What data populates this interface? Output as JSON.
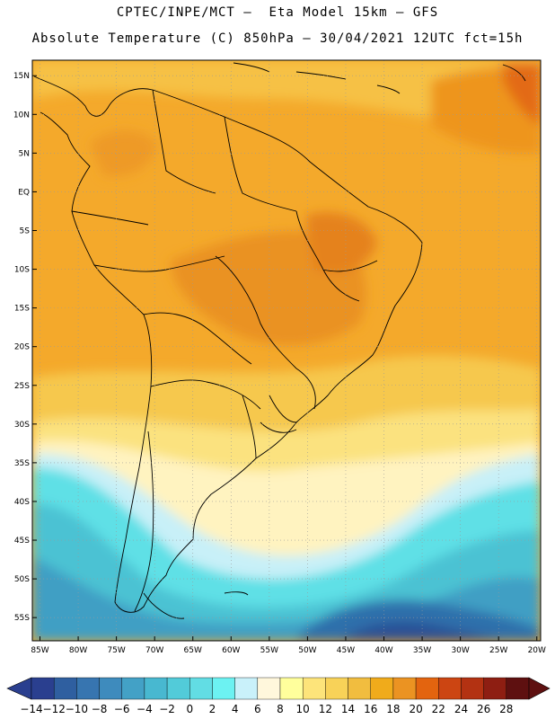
{
  "header": {
    "line1": "CPTEC/INPE/MCT –  Eta Model 15km – GFS",
    "line2": "Absolute Temperature (C) 850hPa – 30/04/2021 12UTC fct=15h"
  },
  "map": {
    "region": "South America",
    "lon_range": [
      -86,
      -19.5
    ],
    "lat_range": [
      -58,
      17
    ],
    "lat_ticks": [
      {
        "lat": 15,
        "label": "15N"
      },
      {
        "lat": 10,
        "label": "10N"
      },
      {
        "lat": 5,
        "label": "5N"
      },
      {
        "lat": 0,
        "label": "EQ"
      },
      {
        "lat": -5,
        "label": "5S"
      },
      {
        "lat": -10,
        "label": "10S"
      },
      {
        "lat": -15,
        "label": "15S"
      },
      {
        "lat": -20,
        "label": "20S"
      },
      {
        "lat": -25,
        "label": "25S"
      },
      {
        "lat": -30,
        "label": "30S"
      },
      {
        "lat": -35,
        "label": "35S"
      },
      {
        "lat": -40,
        "label": "40S"
      },
      {
        "lat": -45,
        "label": "45S"
      },
      {
        "lat": -50,
        "label": "50S"
      },
      {
        "lat": -55,
        "label": "55S"
      }
    ],
    "lon_ticks": [
      {
        "lon": -85,
        "label": "85W"
      },
      {
        "lon": -80,
        "label": "80W"
      },
      {
        "lon": -75,
        "label": "75W"
      },
      {
        "lon": -70,
        "label": "70W"
      },
      {
        "lon": -65,
        "label": "65W"
      },
      {
        "lon": -60,
        "label": "60W"
      },
      {
        "lon": -55,
        "label": "55W"
      },
      {
        "lon": -50,
        "label": "50W"
      },
      {
        "lon": -45,
        "label": "45W"
      },
      {
        "lon": -40,
        "label": "40W"
      },
      {
        "lon": -35,
        "label": "35W"
      },
      {
        "lon": -30,
        "label": "30W"
      },
      {
        "lon": -25,
        "label": "25W"
      },
      {
        "lon": -20,
        "label": "20W"
      }
    ]
  },
  "colorbar": {
    "labels": [
      "−14",
      "−12",
      "−10",
      "−8",
      "−6",
      "−4",
      "−2",
      "0",
      "2",
      "4",
      "6",
      "8",
      "10",
      "12",
      "14",
      "16",
      "18",
      "20",
      "22",
      "24",
      "26",
      "28"
    ],
    "colors": [
      "#2a3f8f",
      "#2f5fa0",
      "#3775b0",
      "#3e8bbd",
      "#43a1c6",
      "#48b8d0",
      "#52cbd9",
      "#62dde4",
      "#6cf2f2",
      "#c9f1fa",
      "#fff7dc",
      "#ffff9c",
      "#fde47a",
      "#f8d258",
      "#f1bd3f",
      "#f0ab1b",
      "#eb9322",
      "#e3640f",
      "#cc4512",
      "#b33212",
      "#8e1e12",
      "#5e1010"
    ]
  },
  "colors": {
    "background_ocean": "#f4a92b",
    "land_outline": "#000000",
    "grid": "#9a9a9a"
  }
}
